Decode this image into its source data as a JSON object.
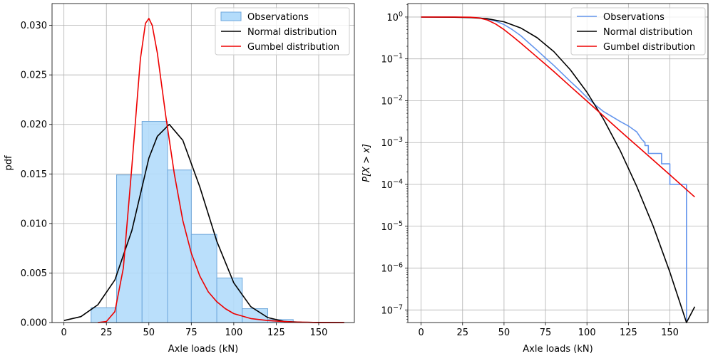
{
  "chart_data": [
    {
      "type": "bar",
      "title": "",
      "xlabel": "Axle loads (kN)",
      "ylabel": "pdf",
      "xlim": [
        -7,
        171
      ],
      "ylim": [
        0,
        0.0322
      ],
      "x_ticks": [
        0,
        25,
        50,
        75,
        100,
        125,
        150
      ],
      "x_tick_labels": [
        "0",
        "25",
        "50",
        "75",
        "100",
        "125",
        "150"
      ],
      "y_ticks": [
        0,
        0.005,
        0.01,
        0.015,
        0.02,
        0.025,
        0.03
      ],
      "y_tick_labels": [
        "0.000",
        "0.005",
        "0.010",
        "0.015",
        "0.020",
        "0.025",
        "0.030"
      ],
      "grid": true,
      "legend_position": "top-right",
      "histogram": {
        "name": "Observations",
        "bin_edges": [
          16,
          31,
          46,
          61,
          75,
          90,
          105,
          120,
          135
        ],
        "values": [
          0.0015,
          0.0149,
          0.0203,
          0.0154,
          0.0089,
          0.0045,
          0.0014,
          0.0003
        ]
      },
      "series": [
        {
          "name": "Normal distribution",
          "x": [
            0,
            10,
            20,
            30,
            40,
            50,
            55,
            62,
            70,
            80,
            90,
            100,
            110,
            120,
            130,
            140,
            150,
            165
          ],
          "y": [
            0.0002,
            0.0006,
            0.0018,
            0.0043,
            0.0093,
            0.0166,
            0.0188,
            0.02,
            0.0184,
            0.0137,
            0.0082,
            0.004,
            0.0016,
            0.0005,
            0.0001,
            3e-05,
            1e-05,
            0
          ]
        },
        {
          "name": "Gumbel distribution",
          "x": [
            20,
            25,
            30,
            35,
            40,
            45,
            48,
            50,
            52,
            55,
            60,
            65,
            70,
            75,
            80,
            85,
            90,
            95,
            100,
            110,
            120,
            135,
            150,
            165
          ],
          "y": [
            0,
            0.0001,
            0.0011,
            0.0055,
            0.0158,
            0.0266,
            0.0302,
            0.0307,
            0.03,
            0.0272,
            0.0208,
            0.015,
            0.0103,
            0.007,
            0.0047,
            0.0031,
            0.0021,
            0.0014,
            0.0009,
            0.0004,
            0.0002,
            5e-05,
            1e-05,
            0
          ]
        }
      ],
      "colors": {
        "histogram_fill": "#b3dcfb",
        "histogram_edge": "#6fa8dc",
        "normal": "#000000",
        "gumbel": "#ee0000"
      }
    },
    {
      "type": "line",
      "title": "",
      "xlabel": "Axle loads (kN)",
      "ylabel": "P[X > x]",
      "xlim": [
        -8,
        173
      ],
      "ylim": [
        5e-08,
        2.1
      ],
      "yscale": "log",
      "x_ticks": [
        0,
        25,
        50,
        75,
        100,
        125,
        150
      ],
      "x_tick_labels": [
        "0",
        "25",
        "50",
        "75",
        "100",
        "125",
        "150"
      ],
      "y_ticks": [
        1e-07,
        1e-06,
        1e-05,
        0.0001,
        0.001,
        0.01,
        0.1,
        1
      ],
      "y_tick_exponents": [
        "−7",
        "−6",
        "−5",
        "−4",
        "−3",
        "−2",
        "−1",
        "0"
      ],
      "y_tick_base": "10",
      "grid": true,
      "legend_position": "top-right",
      "series": [
        {
          "name": "Observations",
          "x": [
            0,
            20,
            30,
            35,
            40,
            45,
            50,
            55,
            60,
            65,
            70,
            75,
            80,
            85,
            90,
            95,
            100,
            105,
            110,
            115,
            120,
            125,
            130,
            133,
            135,
            135,
            137,
            137,
            140,
            140,
            145,
            145,
            150,
            150,
            160,
            160
          ],
          "y": [
            1,
            0.995,
            0.98,
            0.95,
            0.89,
            0.8,
            0.66,
            0.5,
            0.36,
            0.24,
            0.16,
            0.105,
            0.07,
            0.045,
            0.029,
            0.019,
            0.012,
            0.008,
            0.0055,
            0.0042,
            0.0032,
            0.0025,
            0.0018,
            0.0012,
            0.001,
            0.00085,
            0.00085,
            0.00055,
            0.00055,
            0.00055,
            0.00055,
            0.00031,
            0.00031,
            0.0001,
            0.0001,
            5e-08
          ]
        },
        {
          "name": "Normal distribution",
          "x": [
            0,
            20,
            30,
            40,
            50,
            60,
            70,
            80,
            90,
            100,
            110,
            120,
            130,
            140,
            150,
            160,
            165
          ],
          "y": [
            1,
            0.99,
            0.97,
            0.91,
            0.77,
            0.55,
            0.32,
            0.15,
            0.055,
            0.016,
            0.0036,
            0.00065,
            9e-05,
            1e-05,
            8e-07,
            5e-08,
            1.2e-07
          ]
        },
        {
          "name": "Gumbel distribution",
          "x": [
            0,
            20,
            30,
            35,
            40,
            45,
            50,
            55,
            60,
            70,
            80,
            90,
            100,
            110,
            120,
            130,
            140,
            150,
            160,
            165
          ],
          "y": [
            1,
            1,
            0.99,
            0.95,
            0.85,
            0.68,
            0.5,
            0.35,
            0.24,
            0.11,
            0.05,
            0.022,
            0.0098,
            0.0043,
            0.0019,
            0.00085,
            0.00038,
            0.00017,
            7.5e-05,
            5e-05
          ]
        }
      ],
      "colors": {
        "observations": "#6495ed",
        "normal": "#000000",
        "gumbel": "#ee0000"
      }
    }
  ]
}
